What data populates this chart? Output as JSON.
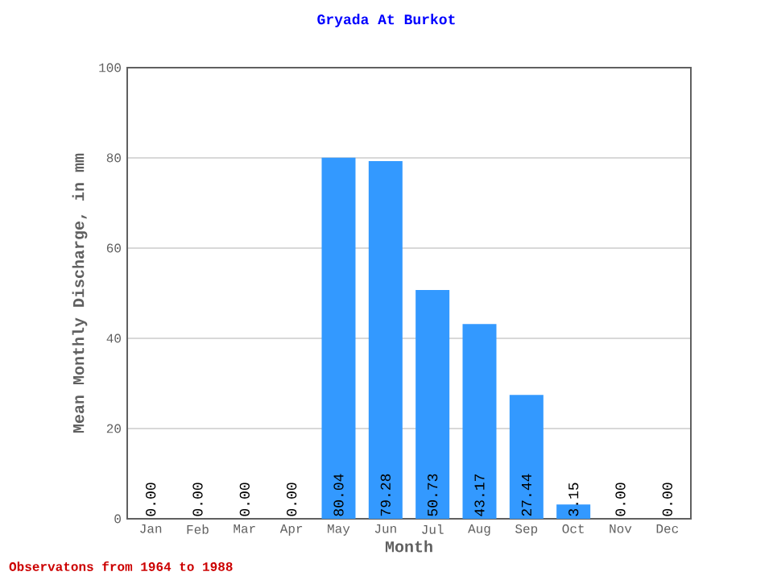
{
  "chart_data": {
    "type": "bar",
    "title": "Gryada At Burkot",
    "xlabel": "Month",
    "ylabel": "Mean Monthly Discharge, in mm",
    "categories": [
      "Jan",
      "Feb",
      "Mar",
      "Apr",
      "May",
      "Jun",
      "Jul",
      "Aug",
      "Sep",
      "Oct",
      "Nov",
      "Dec"
    ],
    "values": [
      0,
      0,
      0,
      0,
      80.04,
      79.28,
      50.73,
      43.17,
      27.44,
      3.15,
      0,
      0
    ],
    "value_labels": [
      "0.00",
      "0.00",
      "0.00",
      "0.00",
      "80.04",
      "79.28",
      "50.73",
      "43.17",
      "27.44",
      "3.15",
      "0.00",
      "0.00"
    ],
    "color": "#3399ff",
    "ylim": [
      0,
      100
    ],
    "yticks": [
      0,
      20,
      40,
      60,
      80,
      100
    ],
    "grid": "y",
    "annotations": [
      "Observatons from 1964 to 1988"
    ]
  }
}
